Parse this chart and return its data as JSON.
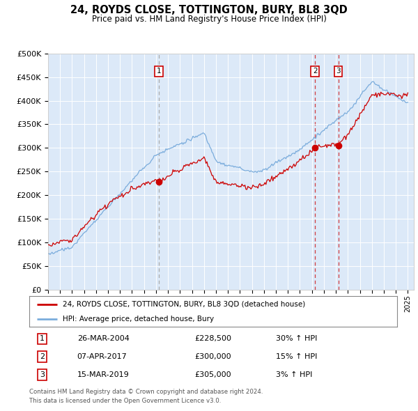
{
  "title": "24, ROYDS CLOSE, TOTTINGTON, BURY, BL8 3QD",
  "subtitle": "Price paid vs. HM Land Registry's House Price Index (HPI)",
  "background_color": "#dce9f8",
  "ylim": [
    0,
    500000
  ],
  "yticks": [
    0,
    50000,
    100000,
    150000,
    200000,
    250000,
    300000,
    350000,
    400000,
    450000,
    500000
  ],
  "ytick_labels": [
    "£0",
    "£50K",
    "£100K",
    "£150K",
    "£200K",
    "£250K",
    "£300K",
    "£350K",
    "£400K",
    "£450K",
    "£500K"
  ],
  "xtick_years": [
    1995,
    1996,
    1997,
    1998,
    1999,
    2000,
    2001,
    2002,
    2003,
    2004,
    2005,
    2006,
    2007,
    2008,
    2009,
    2010,
    2011,
    2012,
    2013,
    2014,
    2015,
    2016,
    2017,
    2018,
    2019,
    2020,
    2021,
    2022,
    2023,
    2024,
    2025
  ],
  "purchases": [
    {
      "num": 1,
      "date": "26-MAR-2004",
      "year": 2004.23,
      "price": 228500,
      "pct": "30%",
      "dir": "↑"
    },
    {
      "num": 2,
      "date": "07-APR-2017",
      "year": 2017.27,
      "price": 300000,
      "pct": "15%",
      "dir": "↑"
    },
    {
      "num": 3,
      "date": "15-MAR-2019",
      "year": 2019.2,
      "price": 305000,
      "pct": "3%",
      "dir": "↑"
    }
  ],
  "legend_line1": "24, ROYDS CLOSE, TOTTINGTON, BURY, BL8 3QD (detached house)",
  "legend_line2": "HPI: Average price, detached house, Bury",
  "footer1": "Contains HM Land Registry data © Crown copyright and database right 2024.",
  "footer2": "This data is licensed under the Open Government Licence v3.0.",
  "red_line_color": "#cc0000",
  "blue_line_color": "#7aacdc",
  "dot_color": "#cc0000"
}
